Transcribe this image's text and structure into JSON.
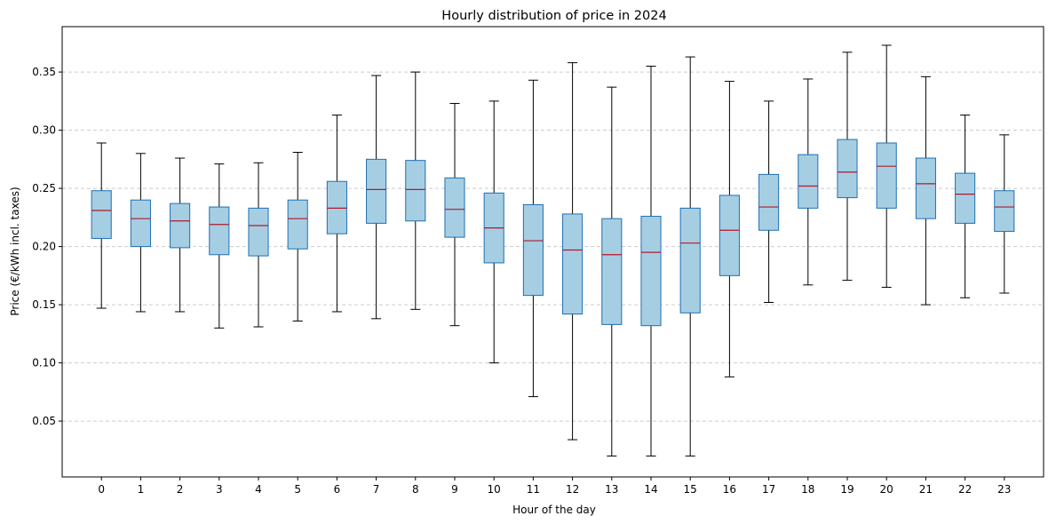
{
  "chart_data": {
    "type": "box",
    "title": "Hourly distribution of price in 2024",
    "xlabel": "Hour of the day",
    "ylabel": "Price (€/kWh incl. taxes)",
    "ylim": [
      0.002,
      0.389
    ],
    "y_ticks": [
      0.05,
      0.1,
      0.15,
      0.2,
      0.25,
      0.3,
      0.35
    ],
    "y_tick_labels": [
      "0.05",
      "0.10",
      "0.15",
      "0.20",
      "0.25",
      "0.30",
      "0.35"
    ],
    "grid": "y dashed",
    "colors": {
      "box_fill": "#a6cee3",
      "box_edge": "#1f6fb2",
      "median": "#b2182b",
      "whisker": "#000000",
      "grid": "#cccccc"
    },
    "categories": [
      "0",
      "1",
      "2",
      "3",
      "4",
      "5",
      "6",
      "7",
      "8",
      "9",
      "10",
      "11",
      "12",
      "13",
      "14",
      "15",
      "16",
      "17",
      "18",
      "19",
      "20",
      "21",
      "22",
      "23"
    ],
    "boxes": [
      {
        "whislo": 0.147,
        "q1": 0.207,
        "med": 0.231,
        "q3": 0.248,
        "whishi": 0.289
      },
      {
        "whislo": 0.144,
        "q1": 0.2,
        "med": 0.224,
        "q3": 0.24,
        "whishi": 0.28
      },
      {
        "whislo": 0.144,
        "q1": 0.199,
        "med": 0.222,
        "q3": 0.237,
        "whishi": 0.276
      },
      {
        "whislo": 0.13,
        "q1": 0.193,
        "med": 0.219,
        "q3": 0.234,
        "whishi": 0.271
      },
      {
        "whislo": 0.131,
        "q1": 0.192,
        "med": 0.218,
        "q3": 0.233,
        "whishi": 0.272
      },
      {
        "whislo": 0.136,
        "q1": 0.198,
        "med": 0.224,
        "q3": 0.24,
        "whishi": 0.281
      },
      {
        "whislo": 0.144,
        "q1": 0.211,
        "med": 0.233,
        "q3": 0.256,
        "whishi": 0.313
      },
      {
        "whislo": 0.138,
        "q1": 0.22,
        "med": 0.249,
        "q3": 0.275,
        "whishi": 0.347
      },
      {
        "whislo": 0.146,
        "q1": 0.222,
        "med": 0.249,
        "q3": 0.274,
        "whishi": 0.35
      },
      {
        "whislo": 0.132,
        "q1": 0.208,
        "med": 0.232,
        "q3": 0.259,
        "whishi": 0.323
      },
      {
        "whislo": 0.1,
        "q1": 0.186,
        "med": 0.216,
        "q3": 0.246,
        "whishi": 0.325
      },
      {
        "whislo": 0.071,
        "q1": 0.158,
        "med": 0.205,
        "q3": 0.236,
        "whishi": 0.343
      },
      {
        "whislo": 0.034,
        "q1": 0.142,
        "med": 0.197,
        "q3": 0.228,
        "whishi": 0.358
      },
      {
        "whislo": 0.02,
        "q1": 0.133,
        "med": 0.193,
        "q3": 0.224,
        "whishi": 0.337
      },
      {
        "whislo": 0.02,
        "q1": 0.132,
        "med": 0.195,
        "q3": 0.226,
        "whishi": 0.355
      },
      {
        "whislo": 0.02,
        "q1": 0.143,
        "med": 0.203,
        "q3": 0.233,
        "whishi": 0.363
      },
      {
        "whislo": 0.088,
        "q1": 0.175,
        "med": 0.214,
        "q3": 0.244,
        "whishi": 0.342
      },
      {
        "whislo": 0.152,
        "q1": 0.214,
        "med": 0.234,
        "q3": 0.262,
        "whishi": 0.325
      },
      {
        "whislo": 0.167,
        "q1": 0.233,
        "med": 0.252,
        "q3": 0.279,
        "whishi": 0.344
      },
      {
        "whislo": 0.171,
        "q1": 0.242,
        "med": 0.264,
        "q3": 0.292,
        "whishi": 0.367
      },
      {
        "whislo": 0.165,
        "q1": 0.233,
        "med": 0.269,
        "q3": 0.289,
        "whishi": 0.373
      },
      {
        "whislo": 0.15,
        "q1": 0.224,
        "med": 0.254,
        "q3": 0.276,
        "whishi": 0.346
      },
      {
        "whislo": 0.156,
        "q1": 0.22,
        "med": 0.245,
        "q3": 0.263,
        "whishi": 0.313
      },
      {
        "whislo": 0.16,
        "q1": 0.213,
        "med": 0.234,
        "q3": 0.248,
        "whishi": 0.296
      }
    ]
  }
}
